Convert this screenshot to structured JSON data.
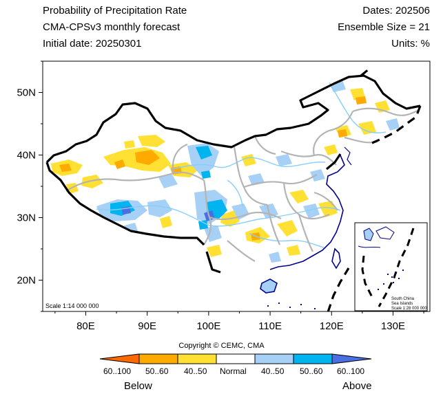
{
  "header": {
    "title": "Probability of Precipitation Rate",
    "model": "CMA-CPSv3 monthly forecast",
    "initial_date": "Initial date: 20250301",
    "dates": "Dates: 202506",
    "ensemble": "Ensemble Size = 21",
    "units": "Units: %"
  },
  "map": {
    "lon_range": [
      73,
      136
    ],
    "lat_range": [
      15,
      55
    ],
    "lon_ticks": [
      "80E",
      "90E",
      "100E",
      "110E",
      "120E",
      "130E"
    ],
    "lat_ticks": [
      "20N",
      "30N",
      "40N",
      "50N"
    ],
    "scale_label": "Scale 1:14 000 000",
    "inset": {
      "title_line1": "South China",
      "title_line2": "Sea Islands",
      "scale_line": "Scale 1:28 000 000"
    }
  },
  "colors": {
    "above_60_100": "#4a6fe3",
    "above_50_60": "#00b4f0",
    "above_40_50": "#a6d0f5",
    "normal": "#ffffff",
    "below_40_50": "#ffe033",
    "below_50_60": "#ffaa00",
    "below_60_100": "#ff6a00",
    "province_line": "#b4b4b4",
    "river": "#87cefa",
    "coast": "#00008b"
  },
  "colorbar": {
    "labels": [
      "60..100",
      "50..60",
      "40..50",
      "Normal",
      "40..50",
      "50..60",
      "60..100"
    ],
    "below": "Below",
    "above": "Above"
  },
  "footer": {
    "copyright": "Copyright © CEMC, CMA"
  }
}
